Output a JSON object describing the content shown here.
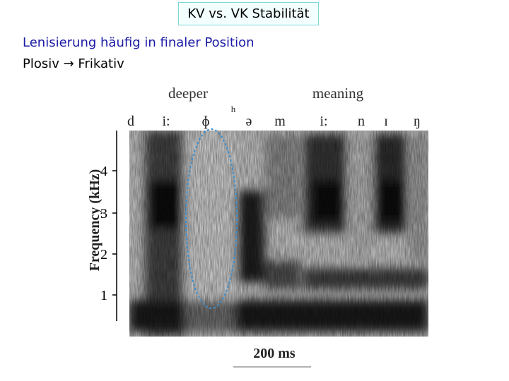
{
  "title": "KV vs. VK Stabilität",
  "bullets": [
    "Lenisierung häufig in finaler Position",
    "Plosiv → Frikativ"
  ],
  "figure": {
    "words": [
      "deeper",
      "meaning"
    ],
    "phones": [
      "d",
      "i:",
      "ɸ",
      "h",
      "ə",
      "m",
      "i:",
      "n",
      "ɪ",
      "ŋ"
    ],
    "y_axis_label": "Frequency (kHz)",
    "y_ticks": [
      "4",
      "3",
      "2",
      "1"
    ],
    "scale_label": "200 ms"
  }
}
